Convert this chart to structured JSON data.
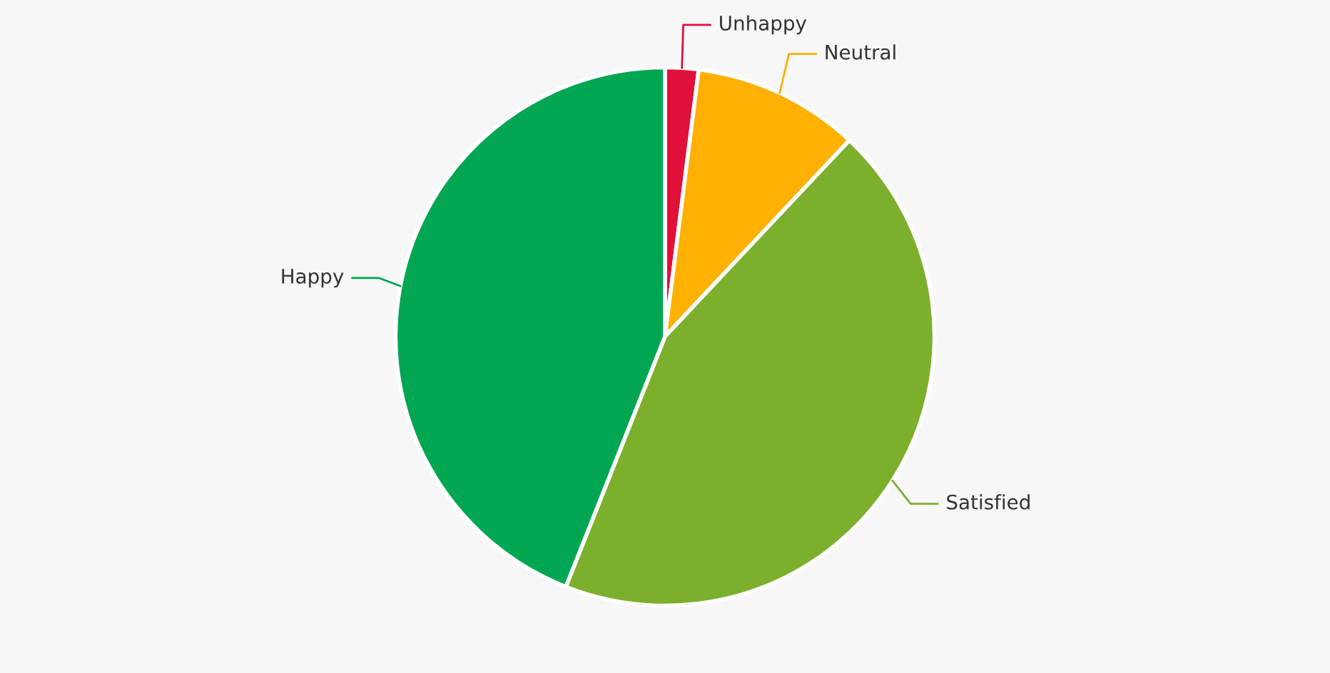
{
  "chart_data": {
    "type": "pie",
    "categories": [
      "Unhappy",
      "Neutral",
      "Satisfied",
      "Happy"
    ],
    "values": [
      2,
      10,
      44,
      44
    ],
    "colors": [
      "#e0103a",
      "#ffb000",
      "#7cb02c",
      "#00a651"
    ]
  }
}
